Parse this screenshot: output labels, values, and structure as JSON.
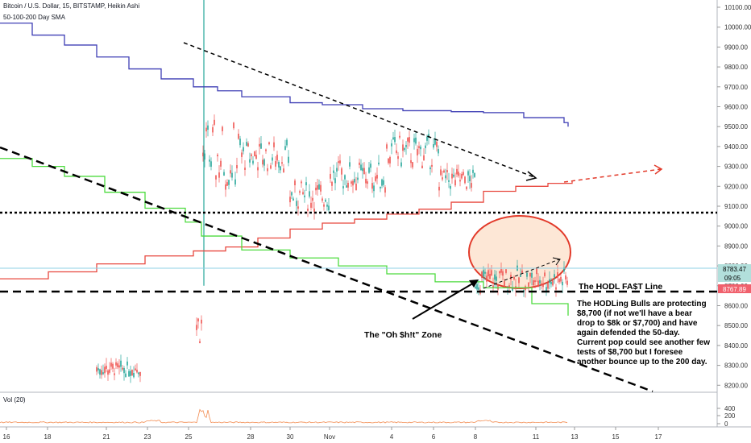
{
  "header": {
    "title": "Bitcoin / U.S. Dollar, 15, BITSTAMP, Heikin Ashi",
    "indicator": "50-100-200 Day SMA",
    "volume_label": "Vol (20)"
  },
  "annotations": {
    "hodl_line": "The HODL FA$T Line",
    "oh_zone": "The \"Oh $h!t\" Zone",
    "comment_lines": [
      "The HODLing Bulls are protecting",
      "$8,700 (if not we'll have a bear",
      "drop to $8k or $7,700) and have",
      "again defended the 50-day.",
      "Current pop could see another few",
      "tests of $8,700 but I foresee",
      "another bounce up to the 200 day."
    ]
  },
  "price_tags": [
    {
      "label": "8783.47",
      "bg": "#b2dfdb",
      "color": "#000000"
    },
    {
      "label": "09:05",
      "bg": "#b2dfdb",
      "color": "#000000"
    },
    {
      "label": "8767.89",
      "bg": "#f0616d",
      "color": "#ffffff"
    }
  ],
  "colors": {
    "sma_200": "#3f3fb5",
    "sma_100": "#e8483f",
    "sma_50": "#4ddb3f",
    "candle_up": "#26a69a",
    "candle_down": "#ef5350",
    "volume": "#f28b50",
    "circle_fill": "#fce1cc",
    "circle_stroke": "#e23a2a"
  },
  "chart_data": {
    "type": "line",
    "title": "Bitcoin / U.S. Dollar, 15, BITSTAMP, Heikin Ashi",
    "y_axis": {
      "ticks": [
        10100,
        10000,
        9900,
        9800,
        9700,
        9600,
        9500,
        9400,
        9300,
        9200,
        9100,
        9000,
        8900,
        8800,
        8700,
        8600,
        8500,
        8400,
        8300,
        8200
      ],
      "range": [
        8180,
        10150
      ],
      "side": "right"
    },
    "x_axis": {
      "tick_labels": [
        "16",
        "18",
        "21",
        "23",
        "25",
        "28",
        "30",
        "Nov",
        "4",
        "6",
        "8",
        "11",
        "13",
        "15",
        "17"
      ]
    },
    "volume_axis": {
      "ticks": [
        400,
        200,
        0
      ]
    },
    "series": [
      {
        "name": "200 Day SMA",
        "color": "#3f3fb5",
        "points": [
          [
            0,
            10020
          ],
          [
            40,
            9960
          ],
          [
            80,
            9910
          ],
          [
            120,
            9850
          ],
          [
            160,
            9790
          ],
          [
            200,
            9740
          ],
          [
            240,
            9700
          ],
          [
            270,
            9680
          ],
          [
            300,
            9650
          ],
          [
            360,
            9620
          ],
          [
            400,
            9610
          ],
          [
            450,
            9590
          ],
          [
            500,
            9580
          ],
          [
            560,
            9575
          ],
          [
            600,
            9570
          ],
          [
            650,
            9545
          ],
          [
            700,
            9520
          ],
          [
            705,
            9500
          ]
        ]
      },
      {
        "name": "100 Day SMA",
        "color": "#e8483f",
        "points": [
          [
            0,
            8735
          ],
          [
            60,
            8770
          ],
          [
            120,
            8810
          ],
          [
            180,
            8850
          ],
          [
            240,
            8875
          ],
          [
            280,
            8895
          ],
          [
            320,
            8940
          ],
          [
            360,
            8985
          ],
          [
            400,
            9015
          ],
          [
            440,
            9035
          ],
          [
            480,
            9060
          ],
          [
            520,
            9085
          ],
          [
            560,
            9120
          ],
          [
            600,
            9175
          ],
          [
            640,
            9200
          ],
          [
            680,
            9215
          ],
          [
            710,
            9225
          ]
        ]
      },
      {
        "name": "50 Day SMA",
        "color": "#4ddb3f",
        "points": [
          [
            0,
            9340
          ],
          [
            40,
            9300
          ],
          [
            80,
            9250
          ],
          [
            130,
            9170
          ],
          [
            180,
            9090
          ],
          [
            230,
            9020
          ],
          [
            250,
            8950
          ],
          [
            300,
            8880
          ],
          [
            360,
            8840
          ],
          [
            420,
            8800
          ],
          [
            480,
            8760
          ],
          [
            540,
            8720
          ],
          [
            600,
            8690
          ],
          [
            660,
            8610
          ],
          [
            705,
            8550
          ]
        ]
      }
    ]
  }
}
